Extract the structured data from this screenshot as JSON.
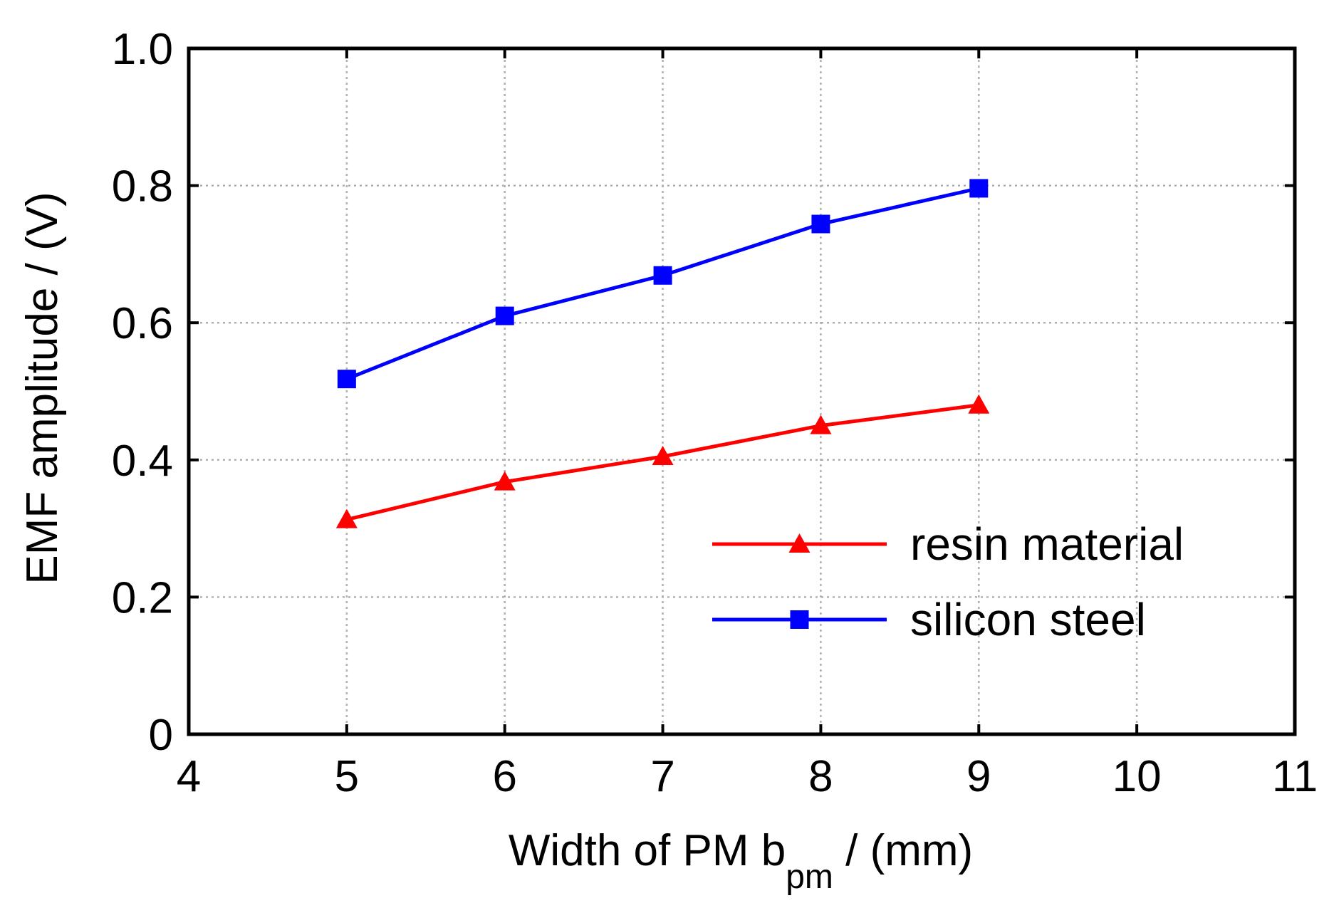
{
  "chart_data": {
    "type": "line",
    "title": "",
    "xlabel": "Width of PM b",
    "xlabel_subscript": "pm",
    "xlabel_suffix": " / (mm)",
    "ylabel": "EMF amplitude / (V)",
    "xlim": [
      4,
      11
    ],
    "ylim": [
      0,
      1.0
    ],
    "x_ticks": [
      4,
      5,
      6,
      7,
      8,
      9,
      10,
      11
    ],
    "x_tick_labels": [
      "4",
      "5",
      "6",
      "7",
      "8",
      "9",
      "10",
      "11"
    ],
    "y_ticks": [
      0,
      0.2,
      0.4,
      0.6,
      0.8,
      1.0
    ],
    "y_tick_labels": [
      "0",
      "0.2",
      "0.4",
      "0.6",
      "0.8",
      "1.0"
    ],
    "grid": true,
    "legend_position": "bottom-right",
    "series": [
      {
        "name": "resin material",
        "color": "#ff0000",
        "marker": "triangle",
        "x": [
          5,
          6,
          7,
          8,
          9
        ],
        "y": [
          0.313,
          0.368,
          0.405,
          0.45,
          0.48
        ]
      },
      {
        "name": "silicon steel",
        "color": "#0000ff",
        "marker": "square",
        "x": [
          5,
          6,
          7,
          8,
          9
        ],
        "y": [
          0.518,
          0.61,
          0.669,
          0.744,
          0.796
        ]
      }
    ]
  }
}
